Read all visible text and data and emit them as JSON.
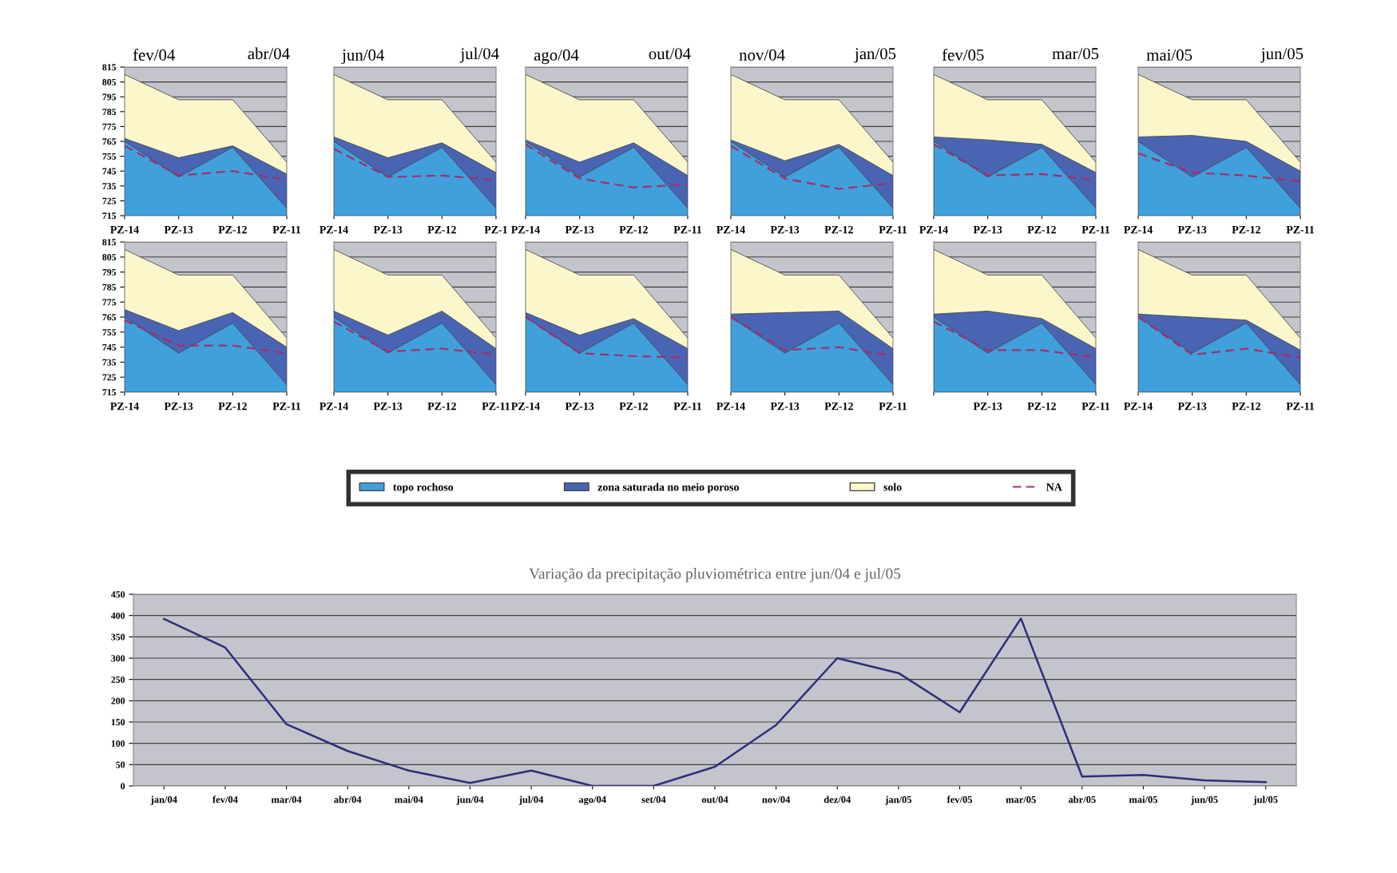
{
  "chart_data": [
    {
      "type": "area",
      "title": "fev/04",
      "annotations": [
        "abr/04"
      ],
      "categories": [
        "PZ-14",
        "PZ-13",
        "PZ-12",
        "PZ-11"
      ],
      "ylim": [
        715,
        815
      ],
      "yticks": [
        715,
        725,
        735,
        745,
        755,
        765,
        775,
        785,
        795,
        805,
        815
      ],
      "grid": "y",
      "legend": "bottom",
      "series": [
        {
          "name": "topo rochoso",
          "color": "#3fa0dc",
          "values": [
            765,
            741,
            761,
            720
          ]
        },
        {
          "name": "zona saturada no meio poroso",
          "color": "#4a64b4",
          "values": [
            767,
            754,
            762,
            743
          ]
        },
        {
          "name": "solo",
          "color": "#fbf7cb",
          "values": [
            810,
            793,
            793,
            751
          ]
        },
        {
          "name": "NA",
          "type": "line",
          "line_style": "dashed",
          "color": "#a0306a",
          "values": [
            762,
            742,
            745,
            739
          ]
        }
      ]
    },
    {
      "type": "area",
      "title": "jun/04",
      "annotations": [
        "jul/04"
      ],
      "categories": [
        "PZ-14",
        "PZ-13",
        "PZ-12",
        "PZ-1"
      ],
      "ylim": [
        715,
        815
      ],
      "yticks": [
        715,
        725,
        735,
        745,
        755,
        765,
        775,
        785,
        795,
        805,
        815
      ],
      "grid": "y",
      "tick_labels": "x",
      "series": [
        {
          "color": "#3fa0dc",
          "values": [
            765,
            741,
            761,
            720
          ]
        },
        {
          "color": "#4a64b4",
          "values": [
            768,
            754,
            764,
            744
          ]
        },
        {
          "color": "#fbf7cb",
          "values": [
            810,
            793,
            793,
            751
          ]
        },
        {
          "type": "line",
          "line_style": "dashed",
          "color": "#a0306a",
          "values": [
            760,
            741,
            742,
            739
          ]
        }
      ]
    },
    {
      "type": "area",
      "title": "ago/04",
      "annotations": [
        "out/04"
      ],
      "categories": [
        "PZ-14",
        "PZ-13",
        "PZ-12",
        "PZ-11"
      ],
      "ylim": [
        715,
        815
      ],
      "yticks": [
        715,
        725,
        735,
        745,
        755,
        765,
        775,
        785,
        795,
        805,
        815
      ],
      "grid": "y",
      "tick_labels": "x",
      "series": [
        {
          "color": "#3fa0dc",
          "values": [
            765,
            741,
            761,
            720
          ]
        },
        {
          "color": "#4a64b4",
          "values": [
            766,
            751,
            764,
            742
          ]
        },
        {
          "color": "#fbf7cb",
          "values": [
            810,
            793,
            793,
            751
          ]
        },
        {
          "type": "line",
          "line_style": "dashed",
          "color": "#a0306a",
          "values": [
            763,
            740,
            734,
            736
          ]
        }
      ]
    },
    {
      "type": "area",
      "title": "nov/04",
      "annotations": [
        "jan/05"
      ],
      "categories": [
        "PZ-14",
        "PZ-13",
        "PZ-12",
        "PZ-11"
      ],
      "ylim": [
        715,
        815
      ],
      "yticks": [
        715,
        725,
        735,
        745,
        755,
        765,
        775,
        785,
        795,
        805,
        815
      ],
      "grid": "y",
      "tick_labels": "x",
      "series": [
        {
          "color": "#3fa0dc",
          "values": [
            765,
            741,
            761,
            720
          ]
        },
        {
          "color": "#4a64b4",
          "values": [
            766,
            752,
            763,
            742
          ]
        },
        {
          "color": "#fbf7cb",
          "values": [
            810,
            793,
            793,
            751
          ]
        },
        {
          "type": "line",
          "line_style": "dashed",
          "color": "#a0306a",
          "values": [
            762,
            740,
            733,
            737
          ]
        }
      ]
    },
    {
      "type": "area",
      "title": "fev/05",
      "annotations": [
        "mar/05"
      ],
      "categories": [
        "PZ-14",
        "PZ-13",
        "PZ-12",
        "PZ-11"
      ],
      "ylim": [
        715,
        815
      ],
      "yticks": [
        715,
        725,
        735,
        745,
        755,
        765,
        775,
        785,
        795,
        805,
        815
      ],
      "grid": "y",
      "tick_labels": "x",
      "series": [
        {
          "color": "#3fa0dc",
          "values": [
            765,
            741,
            761,
            720
          ]
        },
        {
          "color": "#4a64b4",
          "values": [
            768,
            766,
            763,
            744
          ]
        },
        {
          "color": "#fbf7cb",
          "values": [
            810,
            793,
            793,
            751
          ]
        },
        {
          "type": "line",
          "line_style": "dashed",
          "color": "#a0306a",
          "values": [
            763,
            742,
            743,
            739
          ]
        }
      ]
    },
    {
      "type": "area",
      "title": "mai/05",
      "annotations": [
        "jun/05"
      ],
      "categories": [
        "PZ-14",
        "PZ-13",
        "PZ-12",
        "PZ-11"
      ],
      "ylim": [
        715,
        815
      ],
      "yticks": [
        715,
        725,
        735,
        745,
        755,
        765,
        775,
        785,
        795,
        805,
        815
      ],
      "grid": "y",
      "tick_labels": "x",
      "series": [
        {
          "color": "#3fa0dc",
          "values": [
            765,
            741,
            761,
            720
          ]
        },
        {
          "color": "#4a64b4",
          "values": [
            768,
            769,
            765,
            745
          ]
        },
        {
          "color": "#fbf7cb",
          "values": [
            810,
            793,
            793,
            751
          ]
        },
        {
          "type": "line",
          "line_style": "dashed",
          "color": "#a0306a",
          "values": [
            757,
            744,
            742,
            738
          ]
        }
      ]
    },
    {
      "type": "area",
      "categories": [
        "PZ-14",
        "PZ-13",
        "PZ-12",
        "PZ-11"
      ],
      "ylim": [
        715,
        815
      ],
      "yticks": [
        715,
        725,
        735,
        745,
        755,
        765,
        775,
        785,
        795,
        805,
        815
      ],
      "grid": "y",
      "series": [
        {
          "color": "#3fa0dc",
          "values": [
            765,
            741,
            761,
            720
          ]
        },
        {
          "color": "#4a64b4",
          "values": [
            770,
            756,
            768,
            745
          ]
        },
        {
          "color": "#fbf7cb",
          "values": [
            810,
            793,
            793,
            751
          ]
        },
        {
          "type": "line",
          "line_style": "dashed",
          "color": "#a0306a",
          "values": [
            763,
            746,
            746,
            741
          ]
        }
      ]
    },
    {
      "type": "area",
      "categories": [
        "PZ-14",
        "PZ-13",
        "PZ-12",
        "PZ-11"
      ],
      "ylim": [
        715,
        815
      ],
      "yticks": [
        715,
        725,
        735,
        745,
        755,
        765,
        775,
        785,
        795,
        805,
        815
      ],
      "grid": "y",
      "tick_labels": "x",
      "series": [
        {
          "color": "#3fa0dc",
          "values": [
            765,
            741,
            761,
            720
          ]
        },
        {
          "color": "#4a64b4",
          "values": [
            769,
            753,
            769,
            744
          ]
        },
        {
          "color": "#fbf7cb",
          "values": [
            810,
            793,
            793,
            751
          ]
        },
        {
          "type": "line",
          "line_style": "dashed",
          "color": "#a0306a",
          "values": [
            762,
            742,
            744,
            740
          ]
        }
      ]
    },
    {
      "type": "area",
      "categories": [
        "PZ-14",
        "PZ-13",
        "PZ-12",
        "PZ-11"
      ],
      "ylim": [
        715,
        815
      ],
      "yticks": [
        715,
        725,
        735,
        745,
        755,
        765,
        775,
        785,
        795,
        805,
        815
      ],
      "grid": "y",
      "tick_labels": "x",
      "series": [
        {
          "color": "#3fa0dc",
          "values": [
            765,
            741,
            761,
            720
          ]
        },
        {
          "color": "#4a64b4",
          "values": [
            768,
            753,
            764,
            744
          ]
        },
        {
          "color": "#fbf7cb",
          "values": [
            810,
            793,
            793,
            751
          ]
        },
        {
          "type": "line",
          "line_style": "dashed",
          "color": "#a0306a",
          "values": [
            765,
            741,
            739,
            738
          ]
        }
      ]
    },
    {
      "type": "area",
      "categories": [
        "PZ-14",
        "PZ-13",
        "PZ-12",
        "PZ-11"
      ],
      "ylim": [
        715,
        815
      ],
      "yticks": [
        715,
        725,
        735,
        745,
        755,
        765,
        775,
        785,
        795,
        805,
        815
      ],
      "grid": "y",
      "tick_labels": "x",
      "series": [
        {
          "color": "#3fa0dc",
          "values": [
            765,
            741,
            761,
            720
          ]
        },
        {
          "color": "#4a64b4",
          "values": [
            767,
            768,
            769,
            744
          ]
        },
        {
          "color": "#fbf7cb",
          "values": [
            810,
            793,
            793,
            751
          ]
        },
        {
          "type": "line",
          "line_style": "dashed",
          "color": "#a0306a",
          "values": [
            765,
            743,
            745,
            739
          ]
        }
      ]
    },
    {
      "type": "area",
      "categories": [
        null,
        "PZ-13",
        "PZ-12",
        "PZ-11"
      ],
      "ylim": [
        715,
        815
      ],
      "yticks": [
        715,
        725,
        735,
        745,
        755,
        765,
        775,
        785,
        795,
        805,
        815
      ],
      "grid": "y",
      "tick_labels": "x",
      "series": [
        {
          "color": "#3fa0dc",
          "values": [
            765,
            741,
            761,
            720
          ]
        },
        {
          "color": "#4a64b4",
          "values": [
            767,
            769,
            764,
            744
          ]
        },
        {
          "color": "#fbf7cb",
          "values": [
            810,
            793,
            793,
            751
          ]
        },
        {
          "type": "line",
          "line_style": "dashed",
          "color": "#a0306a",
          "values": [
            762,
            743,
            743,
            738
          ]
        }
      ]
    },
    {
      "type": "area",
      "categories": [
        "PZ-14",
        "PZ-13",
        "PZ-12",
        "PZ-11"
      ],
      "ylim": [
        715,
        815
      ],
      "yticks": [
        715,
        725,
        735,
        745,
        755,
        765,
        775,
        785,
        795,
        805,
        815
      ],
      "grid": "y",
      "tick_labels": "x",
      "series": [
        {
          "color": "#3fa0dc",
          "values": [
            765,
            741,
            761,
            720
          ]
        },
        {
          "color": "#4a64b4",
          "values": [
            767,
            765,
            763,
            743
          ]
        },
        {
          "color": "#fbf7cb",
          "values": [
            810,
            793,
            793,
            751
          ]
        },
        {
          "type": "line",
          "line_style": "dashed",
          "color": "#a0306a",
          "values": [
            765,
            740,
            744,
            738
          ]
        }
      ]
    },
    {
      "type": "line",
      "title": "Variação da precipitação pluviométrica entre jun/04 e jul/05",
      "categories": [
        "jan/04",
        "fev/04",
        "mar/04",
        "abr/04",
        "mai/04",
        "jun/04",
        "jul/04",
        "ago/04",
        "set/04",
        "out/04",
        "nov/04",
        "dez/04",
        "jan/05",
        "fev/05",
        "mar/05",
        "abr/05",
        "mai/05",
        "jun/05",
        "jul/05"
      ],
      "ylim": [
        0,
        450
      ],
      "yticks": [
        0,
        50,
        100,
        150,
        200,
        250,
        300,
        350,
        400,
        450
      ],
      "grid": "y",
      "series": [
        {
          "color": "#2e2e7a",
          "values": [
            392,
            325,
            145,
            82,
            36,
            7,
            36,
            0,
            0,
            45,
            143,
            300,
            265,
            173,
            393,
            22,
            26,
            13,
            9
          ]
        }
      ]
    }
  ]
}
